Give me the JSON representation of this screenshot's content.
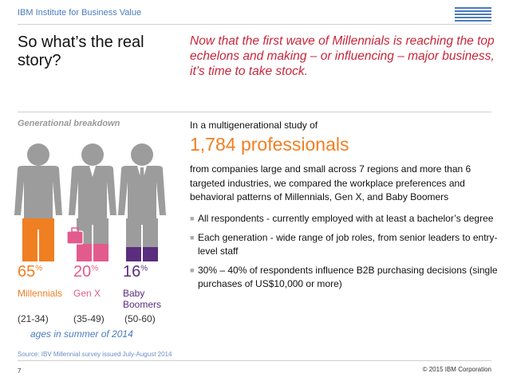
{
  "header": {
    "label": "IBM Institute for Business Value",
    "logo_text": "IBM"
  },
  "title": "So what’s the real story?",
  "lead": "Now that the first wave of Millennials is reaching the top echelons and making – or influencing – major business, it’s time to take stock.",
  "section_label": "Generational breakdown",
  "generations": [
    {
      "pct": "65",
      "unit": "%",
      "name": "Millennials",
      "ages": "(21-34)",
      "color": "#f07f22"
    },
    {
      "pct": "20",
      "unit": "%",
      "name": "Gen X",
      "ages": "(35-49)",
      "color": "#e35b8d"
    },
    {
      "pct": "16",
      "unit": "%",
      "name": "Baby Boomers",
      "ages": "(50-60)",
      "color": "#5a2d7e"
    }
  ],
  "ages_caption": "ages in summer of 2014",
  "study": {
    "intro": "In a multigenerational study of",
    "count": "1,784 professionals",
    "description": "from companies large and small across 7 regions and more than 6 targeted industries, we compared the workplace preferences and behavioral patterns of Millennials, Gen X, and Baby Boomers",
    "bullets": [
      "All respondents - currently employed with at least a bachelor’s degree",
      "Each generation - wide range of job roles, from senior leaders to entry-level staff",
      "30% – 40% of respondents influence B2B purchasing decisions (single purchases of US$10,000 or more)"
    ]
  },
  "source": "Source:  IBV Millennial survey issued July-August 2014",
  "page_number": "7",
  "copyright": "© 2015 IBM Corporation",
  "colors": {
    "accent_red": "#c8263a",
    "accent_orange": "#f07f22",
    "link_blue": "#4a7bbf",
    "figure_gray": "#9c9c9c"
  }
}
